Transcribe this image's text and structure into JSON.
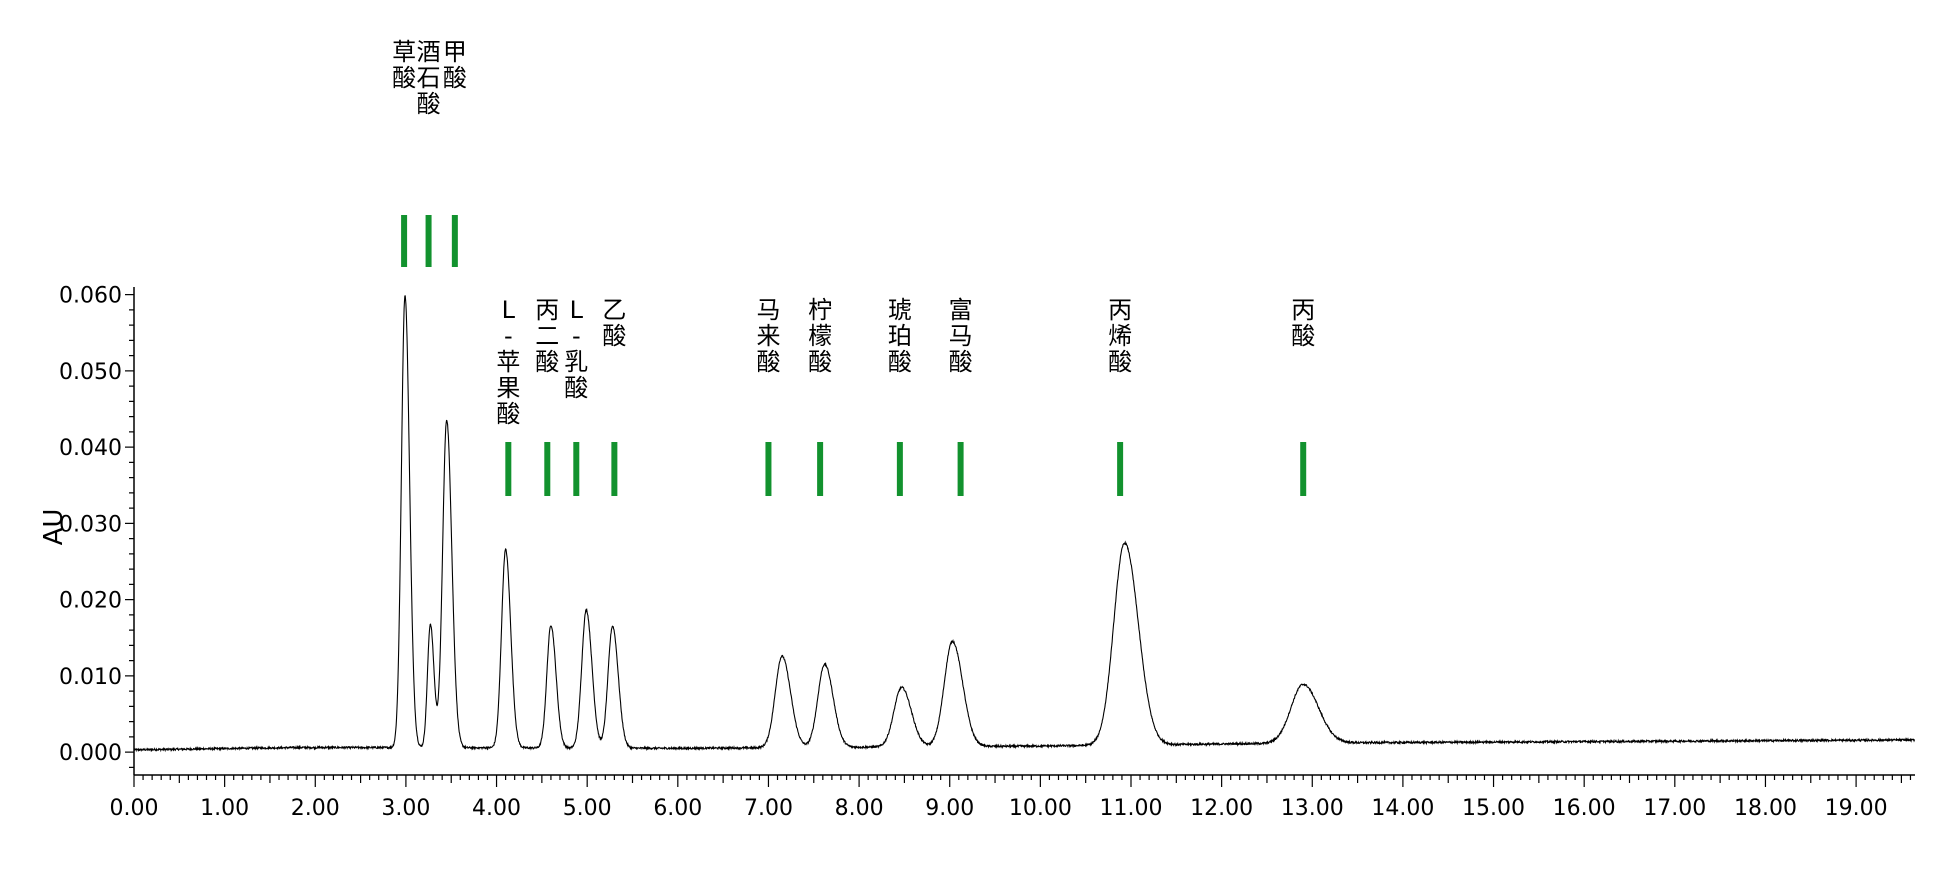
{
  "chart_data": {
    "type": "line",
    "title": "",
    "xlabel": "",
    "ylabel": "AU",
    "xlim": [
      0,
      19.65
    ],
    "ylim": [
      -0.003,
      0.061
    ],
    "x_ticks": [
      "0.00",
      "1.00",
      "2.00",
      "3.00",
      "4.00",
      "5.00",
      "6.00",
      "7.00",
      "8.00",
      "9.00",
      "10.00",
      "11.00",
      "12.00",
      "13.00",
      "14.00",
      "15.00",
      "16.00",
      "17.00",
      "18.00",
      "19.00"
    ],
    "y_ticks": [
      "0.000",
      "0.010",
      "0.020",
      "0.030",
      "0.040",
      "0.050",
      "0.060"
    ],
    "grid": false,
    "baseline": [
      {
        "x": 0.0,
        "y": 0.0003
      },
      {
        "x": 1.8,
        "y": 0.0006
      },
      {
        "x": 2.9,
        "y": 0.0006
      },
      {
        "x": 6.0,
        "y": 0.0005
      },
      {
        "x": 10.0,
        "y": 0.0008
      },
      {
        "x": 13.0,
        "y": 0.0012
      },
      {
        "x": 19.65,
        "y": 0.0016
      }
    ],
    "peaks": [
      {
        "x": 2.99,
        "height": 0.0593,
        "width": 0.04
      },
      {
        "x": 3.27,
        "height": 0.0162,
        "width": 0.032
      },
      {
        "x": 3.45,
        "height": 0.043,
        "width": 0.045
      },
      {
        "x": 4.1,
        "height": 0.026,
        "width": 0.045
      },
      {
        "x": 4.6,
        "height": 0.0161,
        "width": 0.045
      },
      {
        "x": 4.99,
        "height": 0.0181,
        "width": 0.05
      },
      {
        "x": 5.28,
        "height": 0.016,
        "width": 0.05
      },
      {
        "x": 7.15,
        "height": 0.012,
        "width": 0.075
      },
      {
        "x": 7.62,
        "height": 0.0109,
        "width": 0.075
      },
      {
        "x": 8.47,
        "height": 0.0078,
        "width": 0.085
      },
      {
        "x": 9.03,
        "height": 0.0138,
        "width": 0.09
      },
      {
        "x": 10.93,
        "height": 0.0265,
        "width": 0.12
      },
      {
        "x": 12.9,
        "height": 0.0077,
        "width": 0.135
      }
    ],
    "markers_top": [
      {
        "x": 2.98,
        "label": "草\n酸"
      },
      {
        "x": 3.25,
        "label": "酒\n石\n酸"
      },
      {
        "x": 3.54,
        "label": "甲\n酸"
      }
    ],
    "markers_bottom": [
      {
        "x": 4.13,
        "label": "L\n-\n苹\n果\n酸"
      },
      {
        "x": 4.56,
        "label": "丙\n二\n酸"
      },
      {
        "x": 4.88,
        "label": "L\n-\n乳\n酸"
      },
      {
        "x": 5.3,
        "label": "乙\n酸"
      },
      {
        "x": 7.0,
        "label": "马\n来\n酸"
      },
      {
        "x": 7.57,
        "label": "柠\n檬\n酸"
      },
      {
        "x": 8.45,
        "label": "琥\n珀\n酸"
      },
      {
        "x": 9.12,
        "label": "富\n马\n酸"
      },
      {
        "x": 10.88,
        "label": "丙\n烯\n酸"
      },
      {
        "x": 12.9,
        "label": "丙\n酸"
      }
    ]
  }
}
